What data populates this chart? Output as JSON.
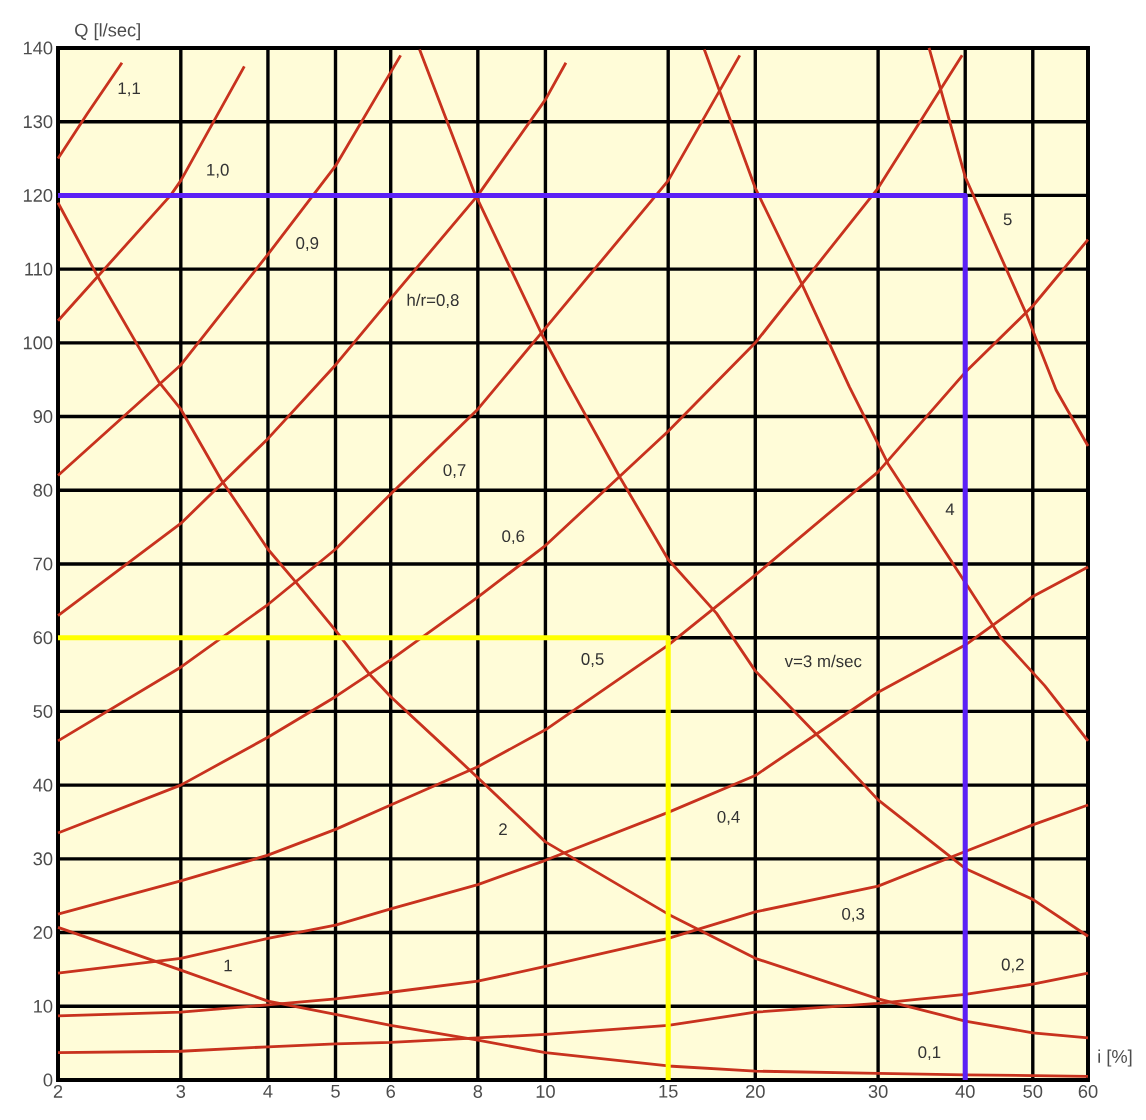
{
  "chart_data": {
    "type": "line",
    "xlabel": "i [%]",
    "ylabel": "Q [l/sec]",
    "log": "x",
    "grid": true,
    "xlim": [
      2,
      60
    ],
    "ylim": [
      0,
      140
    ],
    "xticks": [
      2,
      3,
      4,
      5,
      6,
      8,
      10,
      15,
      20,
      30,
      40,
      50,
      60
    ],
    "yticks": [
      0,
      10,
      20,
      30,
      40,
      50,
      60,
      70,
      80,
      90,
      100,
      110,
      120,
      130,
      140
    ],
    "series": [
      {
        "name": "1,1",
        "color": "#c8321e",
        "x": [
          2,
          2.2,
          2.47
        ],
        "values": [
          125,
          131,
          138
        ]
      },
      {
        "name": "1,0",
        "color": "#c8321e",
        "x": [
          2,
          2.9,
          3,
          3.7
        ],
        "values": [
          103,
          120,
          122,
          137.5
        ]
      },
      {
        "name": "0,9",
        "color": "#c8321e",
        "x": [
          2,
          3,
          4,
          5,
          6.2
        ],
        "values": [
          82,
          97,
          112,
          124,
          139
        ]
      },
      {
        "name": "h/r=0,8",
        "color": "#c8321e",
        "x": [
          2,
          3,
          4,
          5,
          6,
          8,
          10,
          10.7
        ],
        "values": [
          63,
          75.5,
          87,
          97,
          106,
          120,
          133,
          138
        ]
      },
      {
        "name": "0,7",
        "color": "#c8321e",
        "x": [
          2,
          3,
          4,
          5,
          6,
          8,
          10,
          15,
          19
        ],
        "values": [
          46,
          56,
          64.5,
          72,
          79.5,
          91,
          102,
          122,
          139
        ]
      },
      {
        "name": "0,6",
        "color": "#c8321e",
        "x": [
          2,
          3,
          4,
          5,
          6,
          8,
          10,
          15,
          20,
          30,
          39.6
        ],
        "values": [
          33.5,
          40,
          46.5,
          52,
          57,
          65.5,
          72.5,
          88,
          100,
          121,
          139
        ]
      },
      {
        "name": "0,5",
        "color": "#c8321e",
        "x": [
          2,
          3,
          4,
          5,
          6,
          8,
          10,
          15,
          20,
          30,
          40,
          50,
          60
        ],
        "values": [
          22.5,
          27,
          30.5,
          34,
          37.3,
          42.5,
          47.5,
          59,
          68.5,
          82.5,
          96,
          105,
          114
        ]
      },
      {
        "name": "0,4",
        "color": "#c8321e",
        "x": [
          2,
          3,
          4,
          5,
          6,
          8,
          10,
          15,
          20,
          30,
          40,
          50,
          60
        ],
        "values": [
          14.5,
          16.5,
          19.2,
          21,
          23.2,
          26.5,
          29.8,
          36.3,
          41.3,
          52.6,
          59,
          65.6,
          69.6
        ]
      },
      {
        "name": "0,3",
        "color": "#c8321e",
        "x": [
          2,
          3,
          4,
          5,
          6,
          8,
          10,
          15,
          20,
          30,
          40,
          50,
          60
        ],
        "values": [
          8.7,
          9.2,
          10.2,
          11,
          11.9,
          13.4,
          15.4,
          19.2,
          22.8,
          26.3,
          31,
          34.6,
          37.3
        ]
      },
      {
        "name": "0,2",
        "color": "#c8321e",
        "x": [
          2,
          3,
          4,
          5,
          6,
          8,
          10,
          15,
          20,
          30,
          40,
          50,
          60
        ],
        "values": [
          3.7,
          3.9,
          4.5,
          4.9,
          5.1,
          5.7,
          6.2,
          7.4,
          9.2,
          10.4,
          11.6,
          13,
          14.5
        ]
      },
      {
        "name": "1",
        "color": "#c8321e",
        "x": [
          2,
          3,
          4,
          5,
          6,
          8,
          10,
          15,
          20,
          30,
          40,
          60
        ],
        "values": [
          20.7,
          14.9,
          10.7,
          8.9,
          7.4,
          5.4,
          3.7,
          1.9,
          1.2,
          0.9,
          0.7,
          0.5
        ]
      },
      {
        "name": "2",
        "color": "#c8321e",
        "x": [
          2,
          2.28,
          2.79,
          3,
          3.43,
          4,
          4.38,
          5,
          5.6,
          6,
          7.4,
          8,
          10,
          15,
          20,
          30,
          40,
          50,
          60
        ],
        "values": [
          119,
          109,
          94.7,
          91,
          81.4,
          72,
          67.6,
          61,
          55,
          52,
          44,
          41,
          32.3,
          22.5,
          16.5,
          11,
          8,
          6.4,
          5.7
        ]
      },
      {
        "name": "v=3 m/sec",
        "color": "#c8321e",
        "x": [
          6.6,
          7.9,
          9.9,
          10.7,
          12.8,
          15,
          17.6,
          20,
          25,
          30,
          40,
          50,
          60
        ],
        "values": [
          139.8,
          120.5,
          101,
          95,
          81.7,
          70.6,
          63.3,
          55.5,
          46,
          38,
          28.7,
          24.5,
          19.5
        ]
      },
      {
        "name": "4",
        "color": "#c8321e",
        "x": [
          16.9,
          20,
          23.4,
          27.3,
          31,
          40,
          45,
          52,
          60
        ],
        "values": [
          139.8,
          121,
          107.7,
          94,
          83.6,
          67.5,
          60,
          53.5,
          46
        ]
      },
      {
        "name": "5",
        "color": "#c8321e",
        "x": [
          35.5,
          40,
          48.9,
          54,
          60
        ],
        "values": [
          140,
          122.5,
          104,
          93.6,
          86
        ]
      },
      {
        "color": "#ffff00",
        "x": [
          2,
          15,
          15
        ],
        "values": [
          60,
          60,
          0
        ]
      },
      {
        "color": "#5b20f5",
        "x": [
          2,
          40,
          40
        ],
        "values": [
          120,
          120,
          0
        ]
      }
    ],
    "annotations": [
      "0,1"
    ]
  }
}
